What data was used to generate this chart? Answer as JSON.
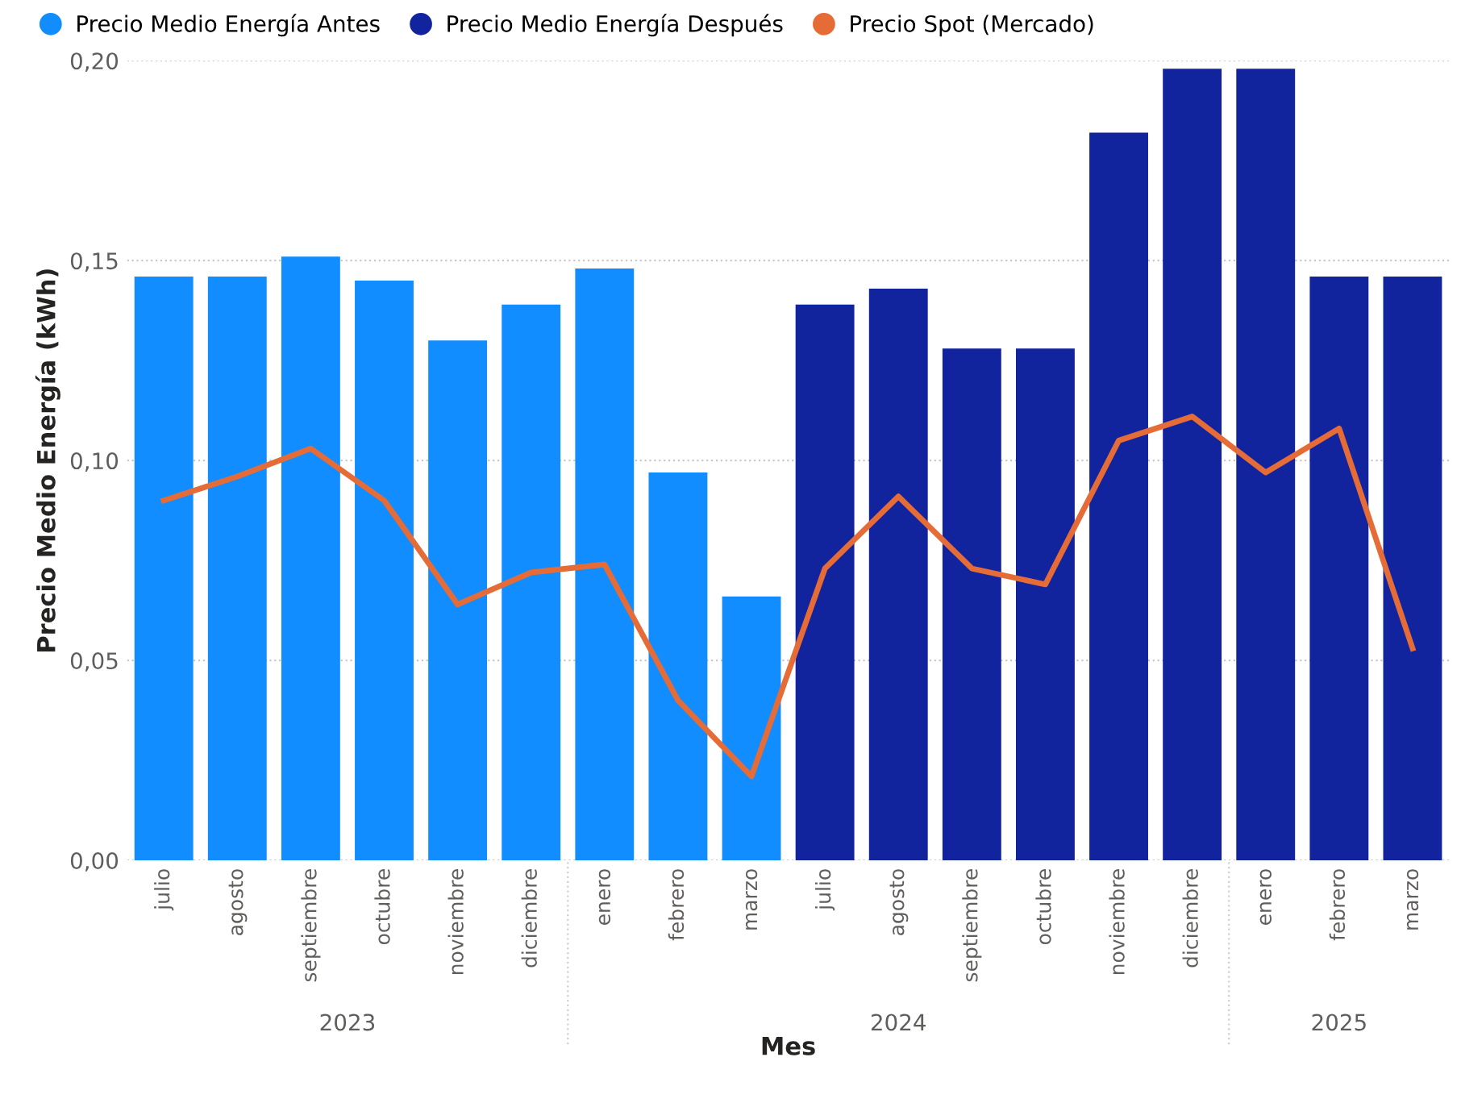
{
  "chart_data": {
    "type": "bar",
    "xlabel": "Mes",
    "ylabel": "Precio Medio Energía (kWh)",
    "categories": [
      "julio",
      "agosto",
      "septiembre",
      "octubre",
      "noviembre",
      "diciembre",
      "enero",
      "febrero",
      "marzo",
      "julio",
      "agosto",
      "septiembre",
      "octubre",
      "noviembre",
      "diciembre",
      "enero",
      "febrero",
      "marzo"
    ],
    "series": [
      {
        "name": "Precio Medio Energía Antes",
        "color": "#118dff",
        "values": [
          0.146,
          0.146,
          0.151,
          0.145,
          0.13,
          0.139,
          0.148,
          0.097,
          0.066,
          null,
          null,
          null,
          null,
          null,
          null,
          null,
          null,
          null
        ]
      },
      {
        "name": "Precio Medio Energía Después",
        "color": "#12239e",
        "values": [
          null,
          null,
          null,
          null,
          null,
          null,
          null,
          null,
          null,
          0.139,
          0.143,
          0.128,
          0.128,
          0.182,
          0.198,
          0.198,
          0.146,
          0.146
        ]
      },
      {
        "name": "Precio Spot (Mercado)",
        "type": "line",
        "color": "#e66c37",
        "values": [
          0.09,
          0.096,
          0.103,
          0.09,
          0.064,
          0.072,
          0.074,
          0.04,
          0.021,
          0.073,
          0.091,
          0.073,
          0.069,
          0.105,
          0.111,
          0.097,
          0.108,
          0.053
        ]
      }
    ],
    "ylim": [
      0,
      0.2
    ],
    "yticks": [
      {
        "value": 0,
        "label": "0,00"
      },
      {
        "value": 0.05,
        "label": "0,05"
      },
      {
        "value": 0.1,
        "label": "0,10"
      },
      {
        "value": 0.15,
        "label": "0,15"
      },
      {
        "value": 0.2,
        "label": "0,20"
      }
    ],
    "grid": "y",
    "legend": "top left",
    "marker": "none",
    "annotations": [
      "2023",
      "2024",
      "2025"
    ]
  }
}
